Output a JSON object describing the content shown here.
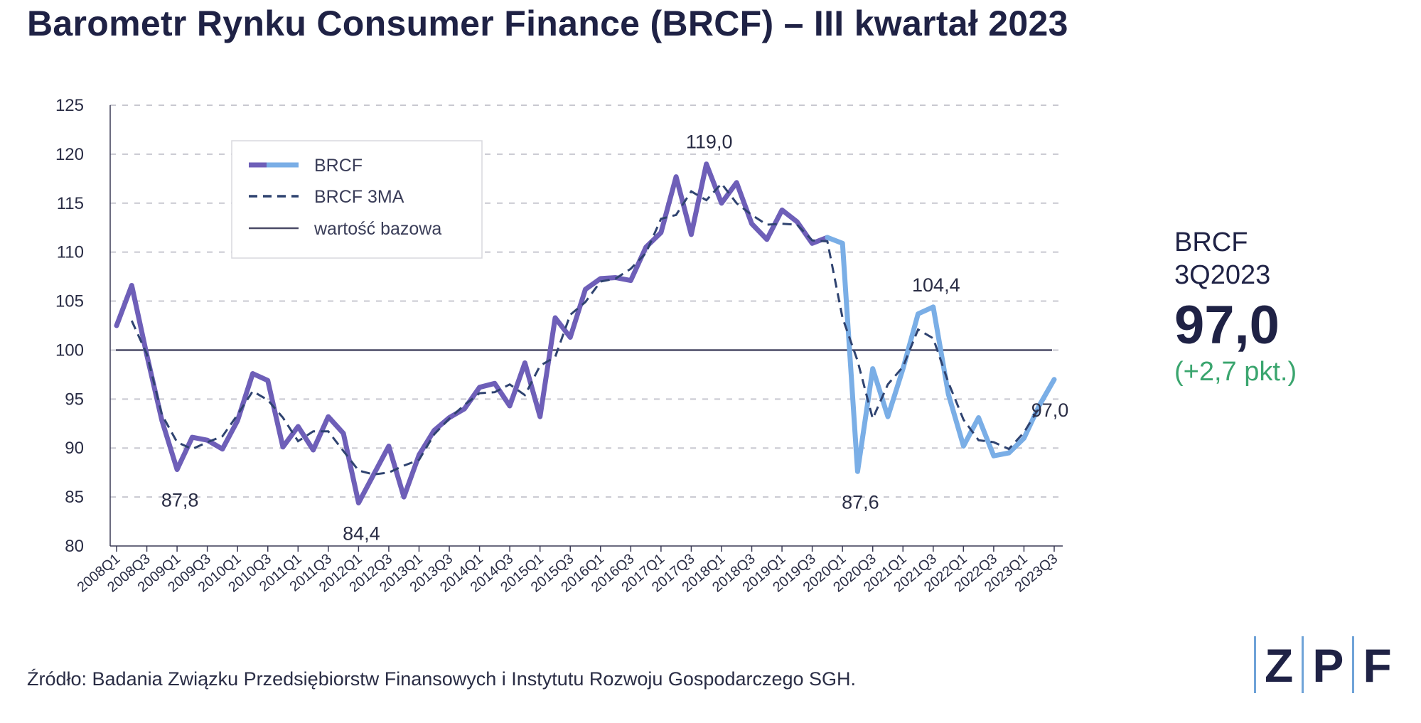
{
  "title": "Barometr Rynku Consumer Finance (BRCF) – III kwartał 2023",
  "side": {
    "label": "BRCF\n3Q2023",
    "value": "97,0",
    "change": "(+2,7 pkt.)"
  },
  "source": "Źródło: Badania Związku Przedsiębiorstw Finansowych i Instytutu Rozwoju Gospodarczego SGH.",
  "logo": [
    "Z",
    "P",
    "F"
  ],
  "colors": {
    "brcf_early": "#6e5fb8",
    "brcf_late": "#7aaee6",
    "ma": "#2f4370",
    "baseline": "#4a4a66",
    "grid": "#c8c8d0"
  },
  "chart_data": {
    "type": "line",
    "ylim": [
      80,
      125
    ],
    "yticks": [
      80,
      85,
      90,
      95,
      100,
      105,
      110,
      115,
      120,
      125
    ],
    "xticks": [
      "2008Q1",
      "2008Q3",
      "2009Q1",
      "2009Q3",
      "2010Q1",
      "2010Q3",
      "2011Q1",
      "2011Q3",
      "2012Q1",
      "2012Q3",
      "2013Q1",
      "2013Q3",
      "2014Q1",
      "2014Q3",
      "2015Q1",
      "2015Q3",
      "2016Q1",
      "2016Q3",
      "2017Q1",
      "2017Q3",
      "2018Q1",
      "2018Q3",
      "2019Q1",
      "2019Q3",
      "2020Q1",
      "2020Q3",
      "2021Q1",
      "2021Q3",
      "2022Q1",
      "2022Q3",
      "2023Q1",
      "2023Q3"
    ],
    "x": [
      "2008Q1",
      "2008Q2",
      "2008Q3",
      "2008Q4",
      "2009Q1",
      "2009Q2",
      "2009Q3",
      "2009Q4",
      "2010Q1",
      "2010Q2",
      "2010Q3",
      "2010Q4",
      "2011Q1",
      "2011Q2",
      "2011Q3",
      "2011Q4",
      "2012Q1",
      "2012Q2",
      "2012Q3",
      "2012Q4",
      "2013Q1",
      "2013Q2",
      "2013Q3",
      "2013Q4",
      "2014Q1",
      "2014Q2",
      "2014Q3",
      "2014Q4",
      "2015Q1",
      "2015Q2",
      "2015Q3",
      "2015Q4",
      "2016Q1",
      "2016Q2",
      "2016Q3",
      "2016Q4",
      "2017Q1",
      "2017Q2",
      "2017Q3",
      "2017Q4",
      "2018Q1",
      "2018Q2",
      "2018Q3",
      "2018Q4",
      "2019Q1",
      "2019Q2",
      "2019Q3",
      "2019Q4",
      "2020Q1",
      "2020Q2",
      "2020Q3",
      "2020Q4",
      "2021Q1",
      "2021Q2",
      "2021Q3",
      "2021Q4",
      "2022Q1",
      "2022Q2",
      "2022Q3",
      "2022Q4",
      "2023Q1",
      "2023Q2",
      "2023Q3"
    ],
    "series": [
      {
        "name": "BRCF",
        "values": [
          102.5,
          106.6,
          99.5,
          92.8,
          87.8,
          91.1,
          90.8,
          89.9,
          92.8,
          97.6,
          96.9,
          90.1,
          92.2,
          89.8,
          93.2,
          91.5,
          84.4,
          87.3,
          90.2,
          85.0,
          89.3,
          91.8,
          93.1,
          94.0,
          96.2,
          96.6,
          94.3,
          98.7,
          93.2,
          103.3,
          101.3,
          106.2,
          107.3,
          107.4,
          107.1,
          110.5,
          112.0,
          117.7,
          111.8,
          119.0,
          115.0,
          117.1,
          112.9,
          111.3,
          114.3,
          113.1,
          110.9,
          111.5,
          110.9,
          87.6,
          98.1,
          93.2,
          98.1,
          103.7,
          104.4,
          95.5,
          90.2,
          93.1,
          89.2,
          89.5,
          91.0,
          94.3,
          97.0
        ]
      },
      {
        "name": "BRCF 3MA",
        "values": [
          null,
          103.0,
          99.6,
          93.4,
          90.6,
          89.9,
          90.6,
          91.2,
          93.4,
          95.8,
          94.9,
          93.1,
          90.7,
          91.7,
          91.7,
          89.7,
          87.7,
          87.3,
          87.5,
          88.2,
          88.8,
          91.4,
          93.0,
          94.4,
          95.6,
          95.7,
          96.5,
          95.4,
          98.4,
          99.3,
          103.6,
          104.9,
          107.0,
          107.3,
          108.3,
          109.9,
          113.4,
          113.8,
          116.2,
          115.3,
          117.0,
          115.0,
          113.8,
          112.8,
          112.9,
          112.8,
          111.2,
          111.1,
          103.3,
          98.9,
          93.0,
          96.5,
          98.3,
          102.1,
          101.2,
          96.7,
          92.9,
          90.8,
          90.6,
          89.9,
          91.6,
          94.1,
          null
        ]
      }
    ],
    "baseline": {
      "name": "wartość bazowa",
      "value": 100
    },
    "color_change_at": "2019Q4",
    "annotations": [
      {
        "x": "2009Q1",
        "y": 87.8,
        "text": "87,8"
      },
      {
        "x": "2012Q1",
        "y": 84.4,
        "text": "84,4"
      },
      {
        "x": "2017Q4",
        "y": 119.0,
        "text": "119,0"
      },
      {
        "x": "2020Q2",
        "y": 87.6,
        "text": "87,6"
      },
      {
        "x": "2021Q3",
        "y": 104.4,
        "text": "104,4"
      },
      {
        "x": "2023Q3",
        "y": 97.0,
        "text": "97,0"
      }
    ],
    "legend": {
      "position": "top-left",
      "entries": [
        "BRCF",
        "BRCF 3MA",
        "wartość bazowa"
      ]
    },
    "grid": true
  }
}
